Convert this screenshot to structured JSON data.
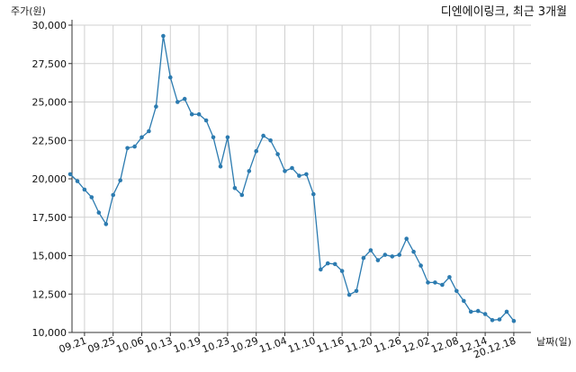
{
  "chart_data": {
    "type": "line",
    "title": "디엔에이링크, 최근 3개월",
    "ylabel": "주가(원)",
    "xlabel": "날짜(일)",
    "ylim": [
      10000,
      30000
    ],
    "yticks": [
      10000,
      12500,
      15000,
      17500,
      20000,
      22500,
      25000,
      27500,
      30000
    ],
    "ytick_labels": [
      "10,000",
      "12,500",
      "15,000",
      "17,500",
      "20,000",
      "22,500",
      "25,000",
      "27,500",
      "30,000"
    ],
    "x_tick_labels": [
      "09.21",
      "09.25",
      "10.06",
      "10.13",
      "10.19",
      "10.23",
      "10.29",
      "11.04",
      "11.10",
      "11.16",
      "11.20",
      "11.26",
      "12.02",
      "12.08",
      "12.14",
      "20.12.18"
    ],
    "x_tick_indices": [
      2,
      6,
      10,
      14,
      18,
      22,
      26,
      30,
      34,
      38,
      42,
      46,
      50,
      54,
      58,
      62
    ],
    "grid": true,
    "color": "#2c7bb0",
    "series": [
      {
        "values": [
          20300,
          19850,
          19300,
          18800,
          17800,
          17050,
          18950,
          19900,
          22000,
          22100,
          22700,
          23100,
          24700,
          29300,
          26600,
          25000,
          25200,
          24200,
          24200,
          23800,
          22700,
          20800,
          22700,
          19400,
          18950,
          20500,
          21800,
          22800,
          22500,
          21600,
          20500,
          20700,
          20200,
          20300,
          19000,
          14100,
          14500,
          14450,
          14000,
          12450,
          12700,
          14850,
          15350,
          14700,
          15050,
          14950,
          15050,
          16100,
          15250,
          14350,
          13250,
          13250,
          13100,
          13600,
          12700,
          12050,
          11350,
          11400,
          11200,
          10800,
          10850,
          11350,
          10750
        ]
      }
    ]
  }
}
